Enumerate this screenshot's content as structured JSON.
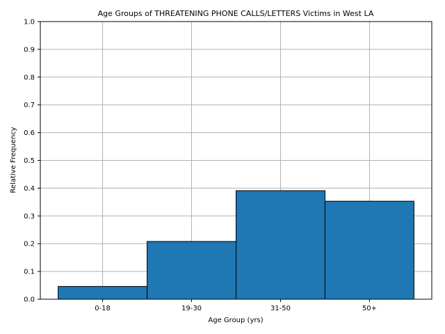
{
  "chart_data": {
    "type": "bar",
    "title": "Age Groups of THREATENING PHONE CALLS/LETTERS Victims in West LA",
    "xlabel": "Age Group (yrs)",
    "ylabel": "Relative Frequency",
    "categories": [
      "0-18",
      "19-30",
      "31-50",
      "50+"
    ],
    "values": [
      0.046,
      0.208,
      0.391,
      0.353
    ],
    "ylim": [
      0,
      1.0
    ],
    "yticks": [
      "0.0",
      "0.1",
      "0.2",
      "0.3",
      "0.4",
      "0.5",
      "0.6",
      "0.7",
      "0.8",
      "0.9",
      "1.0"
    ],
    "grid": true,
    "bar_color": "#1f77b4",
    "bar_edge_color": "#000000",
    "grid_color": "#b0b0b0"
  }
}
